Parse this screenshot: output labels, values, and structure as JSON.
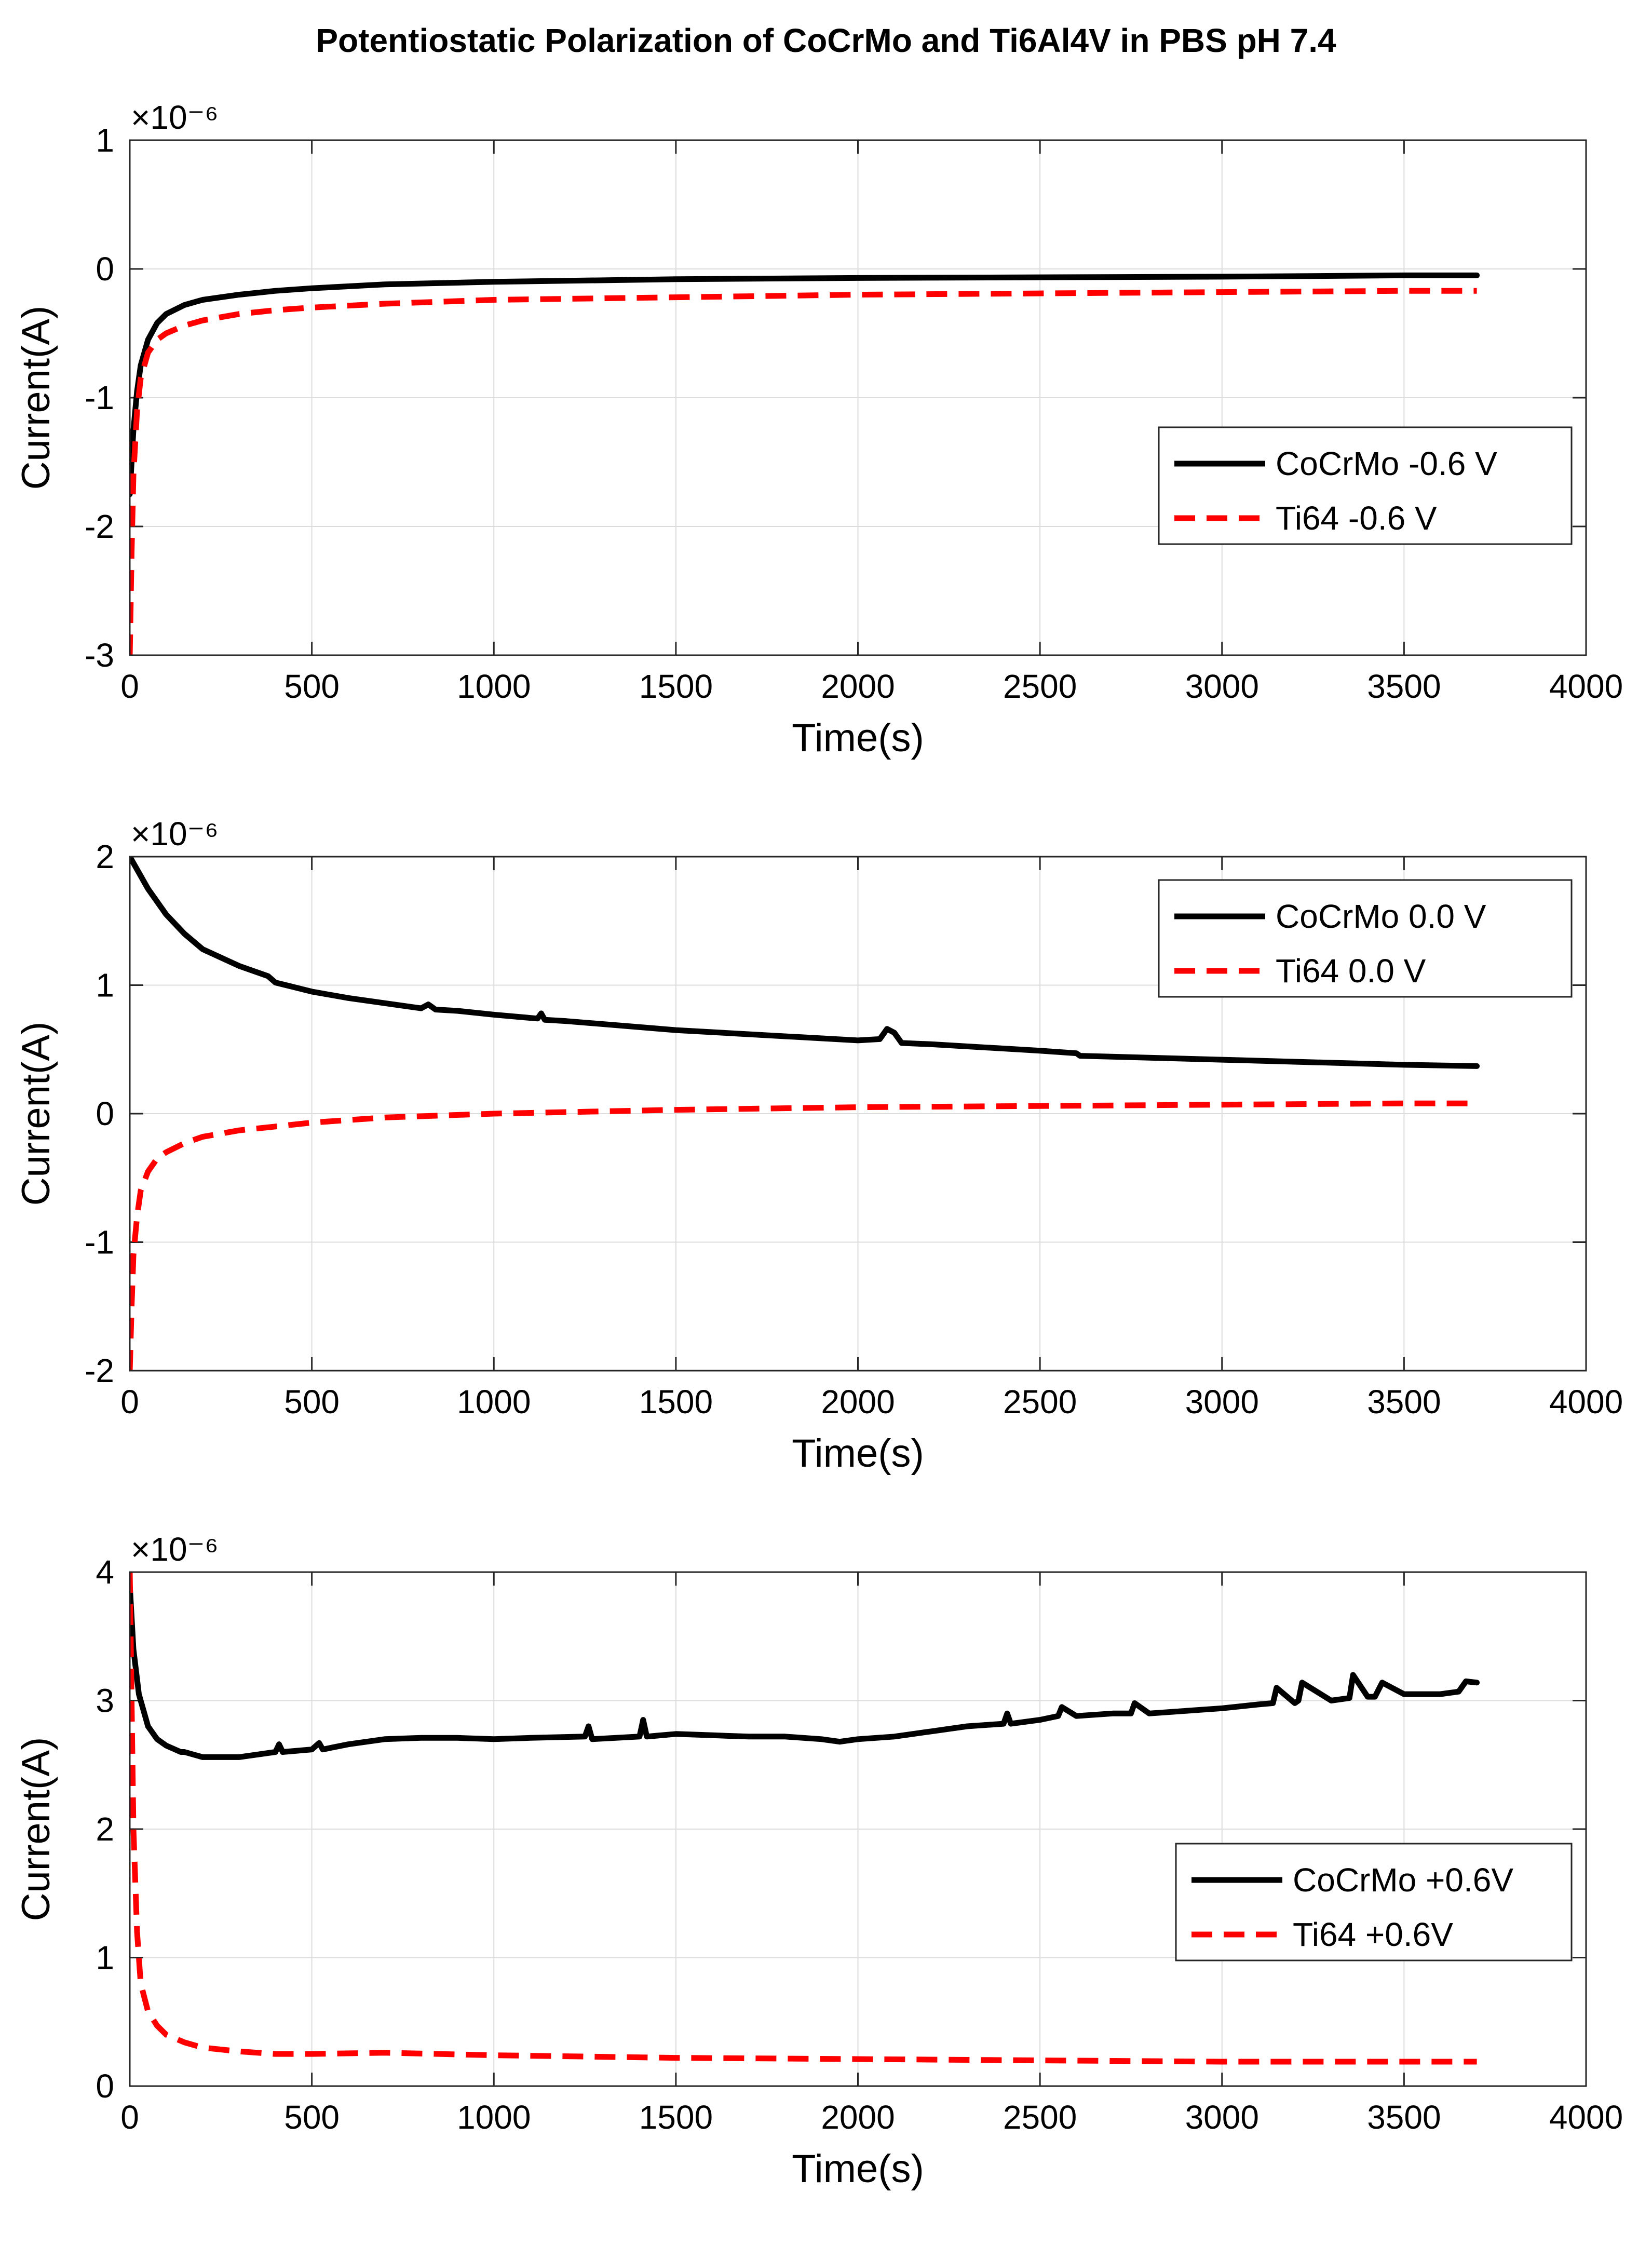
{
  "chart_data": {
    "title": "Potentiostatic Polarization of CoCrMo and Ti6Al4V in PBS pH 7.4",
    "charts": [
      {
        "type": "line",
        "xlabel": "Time(s)",
        "ylabel": "Current(A)",
        "y_exponent": "×10⁻⁶",
        "xlim": [
          0,
          4000
        ],
        "ylim": [
          -3,
          1
        ],
        "xticks": [
          "0",
          "500",
          "1000",
          "1500",
          "2000",
          "2500",
          "3000",
          "3500",
          "4000"
        ],
        "yticks": [
          "-3",
          "-2",
          "-1",
          "0",
          "1"
        ],
        "grid": true,
        "legend_position": "right-middle",
        "series": [
          {
            "name": "CoCrMo -0.6 V",
            "color": "#000000",
            "style": "solid",
            "x": [
              0,
              5,
              10,
              20,
              30,
              50,
              75,
              100,
              150,
              200,
              300,
              400,
              500,
              700,
              1000,
              1500,
              2000,
              2500,
              3000,
              3500,
              3700
            ],
            "y": [
              -1.75,
              -1.5,
              -1.25,
              -0.95,
              -0.75,
              -0.55,
              -0.42,
              -0.35,
              -0.28,
              -0.24,
              -0.2,
              -0.17,
              -0.15,
              -0.12,
              -0.1,
              -0.08,
              -0.07,
              -0.065,
              -0.06,
              -0.05,
              -0.05
            ]
          },
          {
            "name": "Ti64 -0.6 V",
            "color": "#ff0000",
            "style": "dashed",
            "x": [
              0,
              5,
              10,
              20,
              30,
              50,
              75,
              100,
              150,
              200,
              300,
              400,
              500,
              700,
              1000,
              1500,
              2000,
              2500,
              3000,
              3500,
              3700
            ],
            "y": [
              -3.0,
              -2.2,
              -1.6,
              -1.1,
              -0.85,
              -0.65,
              -0.55,
              -0.5,
              -0.44,
              -0.4,
              -0.35,
              -0.32,
              -0.3,
              -0.27,
              -0.24,
              -0.22,
              -0.2,
              -0.19,
              -0.18,
              -0.17,
              -0.17
            ]
          }
        ]
      },
      {
        "type": "line",
        "xlabel": "Time(s)",
        "ylabel": "Current(A)",
        "y_exponent": "×10⁻⁶",
        "xlim": [
          0,
          4000
        ],
        "ylim": [
          -2,
          2
        ],
        "xticks": [
          "0",
          "500",
          "1000",
          "1500",
          "2000",
          "2500",
          "3000",
          "3500",
          "4000"
        ],
        "yticks": [
          "-2",
          "-1",
          "0",
          "1",
          "2"
        ],
        "grid": true,
        "legend_position": "top-right",
        "series": [
          {
            "name": "CoCrMo 0.0 V",
            "color": "#000000",
            "style": "solid",
            "x": [
              0,
              50,
              100,
              150,
              200,
              300,
              380,
              400,
              500,
              600,
              700,
              800,
              820,
              840,
              900,
              1000,
              1120,
              1130,
              1140,
              1200,
              1500,
              2000,
              2060,
              2080,
              2100,
              2120,
              2200,
              2500,
              2600,
              2610,
              3000,
              3500,
              3700
            ],
            "y": [
              2.0,
              1.75,
              1.55,
              1.4,
              1.28,
              1.15,
              1.07,
              1.02,
              0.95,
              0.9,
              0.86,
              0.82,
              0.85,
              0.81,
              0.8,
              0.77,
              0.74,
              0.78,
              0.73,
              0.72,
              0.65,
              0.57,
              0.58,
              0.66,
              0.63,
              0.55,
              0.54,
              0.49,
              0.47,
              0.45,
              0.42,
              0.38,
              0.37
            ]
          },
          {
            "name": "Ti64 0.0 V",
            "color": "#ff0000",
            "style": "dashed",
            "x": [
              0,
              5,
              10,
              20,
              30,
              50,
              75,
              100,
              150,
              200,
              300,
              400,
              500,
              700,
              1000,
              1500,
              2000,
              2500,
              3000,
              3500,
              3700
            ],
            "y": [
              -2.0,
              -1.5,
              -1.1,
              -0.8,
              -0.6,
              -0.45,
              -0.35,
              -0.3,
              -0.23,
              -0.18,
              -0.13,
              -0.1,
              -0.07,
              -0.03,
              0.0,
              0.03,
              0.05,
              0.06,
              0.07,
              0.08,
              0.08
            ]
          }
        ]
      },
      {
        "type": "line",
        "xlabel": "Time(s)",
        "ylabel": "Current(A)",
        "y_exponent": "×10⁻⁶",
        "xlim": [
          0,
          4000
        ],
        "ylim": [
          0,
          4
        ],
        "xticks": [
          "0",
          "500",
          "1000",
          "1500",
          "2000",
          "2500",
          "3000",
          "3500",
          "4000"
        ],
        "yticks": [
          "0",
          "1",
          "2",
          "3",
          "4"
        ],
        "grid": true,
        "legend_position": "bottom-right",
        "series": [
          {
            "name": "CoCrMo +0.6V",
            "color": "#000000",
            "style": "solid",
            "x": [
              0,
              10,
              25,
              50,
              75,
              100,
              140,
              150,
              200,
              300,
              400,
              410,
              420,
              500,
              520,
              530,
              600,
              700,
              800,
              900,
              1000,
              1100,
              1250,
              1260,
              1270,
              1400,
              1410,
              1420,
              1500,
              1600,
              1700,
              1800,
              1900,
              1950,
              2000,
              2100,
              2200,
              2300,
              2400,
              2410,
              2420,
              2500,
              2550,
              2560,
              2600,
              2700,
              2750,
              2760,
              2800,
              2900,
              3000,
              3100,
              3140,
              3150,
              3200,
              3210,
              3220,
              3300,
              3350,
              3360,
              3400,
              3420,
              3440,
              3500,
              3600,
              3650,
              3670,
              3700
            ],
            "y": [
              3.9,
              3.4,
              3.05,
              2.8,
              2.7,
              2.65,
              2.6,
              2.6,
              2.56,
              2.56,
              2.6,
              2.66,
              2.6,
              2.62,
              2.67,
              2.62,
              2.66,
              2.7,
              2.71,
              2.71,
              2.7,
              2.71,
              2.72,
              2.8,
              2.7,
              2.72,
              2.85,
              2.72,
              2.74,
              2.73,
              2.72,
              2.72,
              2.7,
              2.68,
              2.7,
              2.72,
              2.76,
              2.8,
              2.82,
              2.9,
              2.82,
              2.85,
              2.88,
              2.95,
              2.88,
              2.9,
              2.9,
              2.98,
              2.9,
              2.92,
              2.94,
              2.97,
              2.98,
              3.1,
              2.98,
              3.0,
              3.14,
              3.0,
              3.02,
              3.2,
              3.03,
              3.03,
              3.14,
              3.05,
              3.05,
              3.07,
              3.15,
              3.14
            ]
          },
          {
            "name": "Ti64 +0.6V",
            "color": "#ff0000",
            "style": "dashed",
            "x": [
              0,
              5,
              10,
              20,
              30,
              50,
              75,
              100,
              150,
              200,
              300,
              400,
              500,
              700,
              1000,
              1500,
              2000,
              2500,
              3000,
              3500,
              3700
            ],
            "y": [
              4.0,
              3.0,
              2.0,
              1.2,
              0.8,
              0.58,
              0.47,
              0.4,
              0.34,
              0.3,
              0.27,
              0.25,
              0.25,
              0.26,
              0.24,
              0.22,
              0.21,
              0.2,
              0.19,
              0.19,
              0.19
            ]
          }
        ]
      }
    ]
  }
}
